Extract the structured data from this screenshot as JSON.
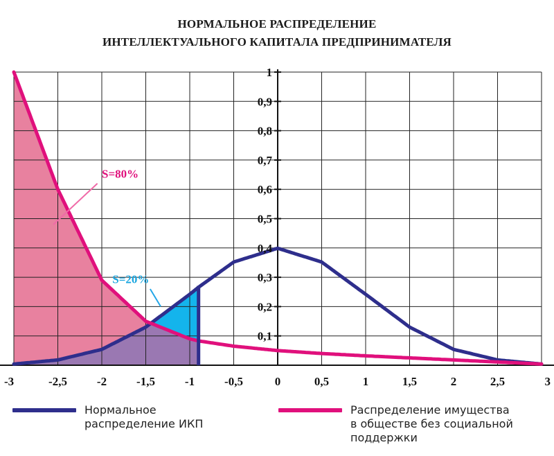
{
  "title_line1": "НОРМАЛЬНОЕ РАСПРЕДЕЛЕНИЕ",
  "title_line2": "ИНТЕЛЛЕКТУАЛЬНОГО КАПИТАЛА ПРЕДПРИНИМАТЕЛЯ",
  "colors": {
    "blue": "#2e2e8c",
    "magenta": "#e0107c",
    "pink_fill": "#e8819f",
    "purple_fill": "#9a78b2",
    "cyan_fill": "#14b4ec",
    "cyan_text": "#1aa6e0",
    "grid": "#222222"
  },
  "chart_data": {
    "type": "line",
    "xlim": [
      -3,
      3
    ],
    "ylim": [
      0,
      1
    ],
    "x_ticks": [
      -3,
      -2.5,
      -2,
      -1.5,
      -1,
      -0.5,
      0,
      0.5,
      1,
      1.5,
      2,
      2.5,
      3
    ],
    "x_tick_labels": [
      "-3",
      "-2,5",
      "-2",
      "-1,5",
      "-1",
      "-0,5",
      "0",
      "0,5",
      "1",
      "1,5",
      "2",
      "2,5",
      "3"
    ],
    "y_ticks": [
      0.1,
      0.2,
      0.3,
      0.4,
      0.5,
      0.6,
      0.7,
      0.8,
      0.9,
      1
    ],
    "y_tick_labels": [
      "0,1",
      "0,2",
      "0,3",
      "0,4",
      "0,5",
      "0,6",
      "0,7",
      "0,8",
      "0,9",
      "1"
    ],
    "grid": true,
    "series": [
      {
        "name": "Нормальное распределение ИКП",
        "color": "#2e2e8c",
        "x": [
          -3,
          -2.5,
          -2,
          -1.5,
          -1,
          -0.9,
          -0.5,
          0,
          0.5,
          1,
          1.5,
          2,
          2.5,
          3
        ],
        "y": [
          0.004,
          0.018,
          0.054,
          0.13,
          0.242,
          0.266,
          0.352,
          0.399,
          0.352,
          0.242,
          0.13,
          0.054,
          0.018,
          0.004
        ]
      },
      {
        "name": "Распределение имущества в обществе без социальной поддержки",
        "color": "#e0107c",
        "x": [
          -3,
          -2.5,
          -2,
          -1.5,
          -1,
          -0.9,
          -0.5,
          0,
          0.5,
          1,
          1.5,
          2,
          2.5,
          3
        ],
        "y": [
          1.0,
          0.6,
          0.29,
          0.15,
          0.09,
          0.083,
          0.065,
          0.05,
          0.04,
          0.032,
          0.025,
          0.018,
          0.011,
          0.004
        ]
      }
    ],
    "cutoff_x": -0.9,
    "annotations": [
      {
        "text": "S=80%",
        "color": "#e0107c"
      },
      {
        "text": "S=20%",
        "color": "#1aa6e0"
      }
    ]
  },
  "legend": [
    {
      "label": "Нормальное\nраспределение ИКП",
      "color": "#2e2e8c"
    },
    {
      "label": "Распределение имущества\nв обществе без социальной\nподдержки",
      "color": "#e0107c"
    }
  ]
}
